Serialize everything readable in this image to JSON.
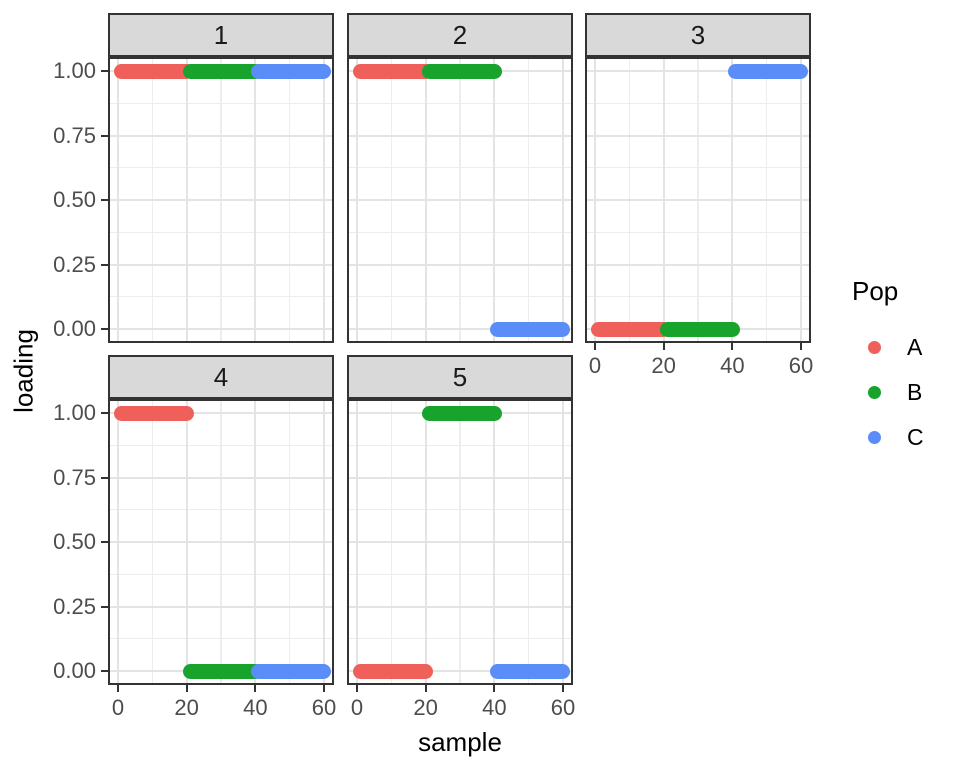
{
  "figure": {
    "background": "#FFFFFF"
  },
  "colors": {
    "strip_bg": "#D9D9D9",
    "strip_text": "#1A1A1A",
    "panel_border": "#333333",
    "panel_bg": "#FFFFFF",
    "grid_major": "#E4E4E4",
    "grid_minor": "#EDEDED",
    "tick_mark": "#333333",
    "tick_label": "#4D4D4D",
    "axis_title": "#000000"
  },
  "axes": {
    "y_title": "loading",
    "x_title": "sample"
  },
  "legend": {
    "title": "Pop",
    "items": [
      {
        "label": "A",
        "color": "#F0605A"
      },
      {
        "label": "B",
        "color": "#17A32C"
      },
      {
        "label": "C",
        "color": "#5B8DF8"
      }
    ]
  },
  "chart_data": {
    "type": "scatter",
    "title": "",
    "xlabel": "sample",
    "ylabel": "loading",
    "xlim": [
      0,
      60
    ],
    "ylim": [
      0,
      1
    ],
    "grid": true,
    "legend_title": "Pop",
    "legend_position": "right",
    "facet_labels": [
      "1",
      "2",
      "3",
      "4",
      "5"
    ],
    "x_major_ticks": [
      {
        "v": 0,
        "label": "0"
      },
      {
        "v": 20,
        "label": "20"
      },
      {
        "v": 40,
        "label": "40"
      },
      {
        "v": 60,
        "label": "60"
      }
    ],
    "x_minor_ticks": [
      10,
      30,
      50
    ],
    "y_major_ticks": [
      {
        "v": 1.0,
        "label": "1.00"
      },
      {
        "v": 0.75,
        "label": "0.75"
      },
      {
        "v": 0.5,
        "label": "0.50"
      },
      {
        "v": 0.25,
        "label": "0.25"
      },
      {
        "v": 0.0,
        "label": "0.00"
      }
    ],
    "y_minor_ticks": [
      0.125,
      0.375,
      0.625,
      0.875
    ],
    "series_colors": {
      "A": "#F0605A",
      "B": "#17A32C",
      "C": "#5B8DF8"
    },
    "facets": [
      {
        "label": "1",
        "segments": [
          {
            "pop": "A",
            "x_start": 1,
            "x_end": 20,
            "loading": 1
          },
          {
            "pop": "B",
            "x_start": 21,
            "x_end": 40,
            "loading": 1
          },
          {
            "pop": "C",
            "x_start": 41,
            "x_end": 60,
            "loading": 1
          }
        ]
      },
      {
        "label": "2",
        "segments": [
          {
            "pop": "A",
            "x_start": 1,
            "x_end": 20,
            "loading": 1
          },
          {
            "pop": "B",
            "x_start": 21,
            "x_end": 40,
            "loading": 1
          },
          {
            "pop": "C",
            "x_start": 41,
            "x_end": 60,
            "loading": 0
          }
        ]
      },
      {
        "label": "3",
        "segments": [
          {
            "pop": "A",
            "x_start": 1,
            "x_end": 20,
            "loading": 0
          },
          {
            "pop": "B",
            "x_start": 21,
            "x_end": 40,
            "loading": 0
          },
          {
            "pop": "C",
            "x_start": 41,
            "x_end": 60,
            "loading": 1
          }
        ]
      },
      {
        "label": "4",
        "segments": [
          {
            "pop": "A",
            "x_start": 1,
            "x_end": 20,
            "loading": 1
          },
          {
            "pop": "B",
            "x_start": 21,
            "x_end": 40,
            "loading": 0
          },
          {
            "pop": "C",
            "x_start": 41,
            "x_end": 60,
            "loading": 0
          }
        ]
      },
      {
        "label": "5",
        "segments": [
          {
            "pop": "A",
            "x_start": 1,
            "x_end": 20,
            "loading": 0
          },
          {
            "pop": "B",
            "x_start": 21,
            "x_end": 40,
            "loading": 1
          },
          {
            "pop": "C",
            "x_start": 41,
            "x_end": 60,
            "loading": 0
          }
        ]
      }
    ]
  }
}
